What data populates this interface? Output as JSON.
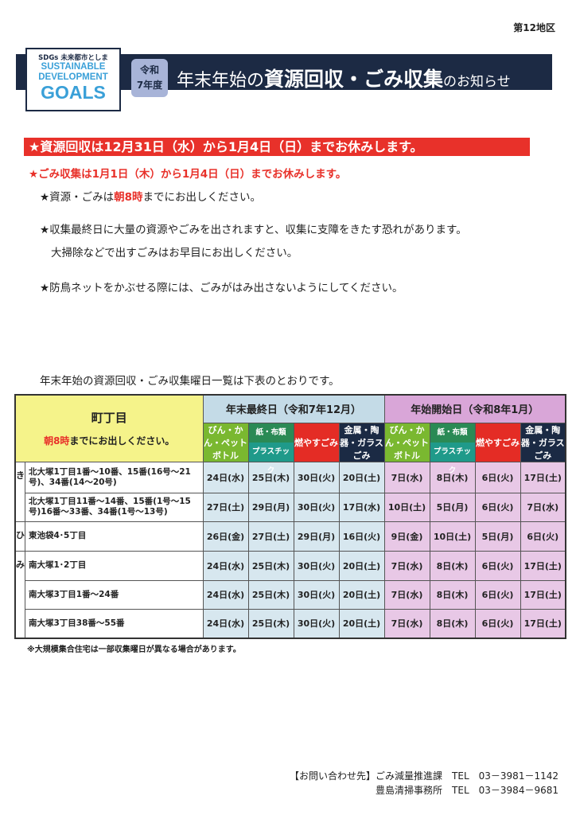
{
  "district": "第12地区",
  "logo": {
    "line1": "SDGs 未来都市としま",
    "line2": "SUSTAINABLE",
    "line3": "DEVELOPMENT",
    "line4": "GOALS"
  },
  "header": {
    "year_line1": "令和",
    "year_line2": "7年度",
    "title_a": "年末年始の",
    "title_b": "資源回収・ごみ収集",
    "title_c": "のお知らせ"
  },
  "banner": "★資源回収は12月31日（水）から1月4日（日）までお休みします。",
  "notice2": "★ごみ収集は1月1日（木）から1月4日（日）までお休みします。",
  "bullets": {
    "b1a": "★資源・ごみは",
    "b1b": "朝8時",
    "b1c": "までにお出しください。",
    "b2": "★収集最終日に大量の資源やごみを出されますと、収集に支障をきたす恐れがあります。",
    "b2b": "大掃除などで出すごみはお早目にお出しください。",
    "b3": "★防鳥ネットをかぶせる際には、ごみがはみ出さないようにしてください。"
  },
  "table_intro": "年末年始の資源回収・ごみ収集曜日一覧は下表のとおりです。",
  "table": {
    "area_header": "町丁目",
    "area_sub_a": "朝8時",
    "area_sub_b": "までにお出しください。",
    "end_header": "年末最終日（令和7年12月）",
    "start_header": "年始開始日（令和8年1月）",
    "categories": {
      "bottles": "びん・かん・ペットボトル",
      "paper": "紙・布類",
      "plastic": "プラスチック",
      "burnable": "燃やすごみ",
      "metal": "金属・陶器・ガラスごみ"
    },
    "rows": [
      {
        "kana": "き",
        "area": "北大塚1丁目1番～10番、15番(16号～21号)、34番(14～20号)",
        "dates": [
          "24日(水)",
          "25日(木)",
          "30日(火)",
          "20日(土)",
          "7日(水)",
          "8日(木)",
          "6日(火)",
          "17日(土)"
        ]
      },
      {
        "kana": "",
        "area": "北大塚1丁目11番～14番、15番(1号～15号)16番～33番、34番(1号～13号)",
        "dates": [
          "27日(土)",
          "29日(月)",
          "30日(火)",
          "17日(水)",
          "10日(土)",
          "5日(月)",
          "6日(火)",
          "7日(水)"
        ]
      },
      {
        "kana": "ひ",
        "area": "東池袋4･5丁目",
        "dates": [
          "26日(金)",
          "27日(土)",
          "29日(月)",
          "16日(火)",
          "9日(金)",
          "10日(土)",
          "5日(月)",
          "6日(火)"
        ]
      },
      {
        "kana": "み",
        "area": "南大塚1･2丁目",
        "dates": [
          "24日(水)",
          "25日(木)",
          "30日(火)",
          "20日(土)",
          "7日(水)",
          "8日(木)",
          "6日(火)",
          "17日(土)"
        ]
      },
      {
        "kana": "",
        "area": "南大塚3丁目1番～24番",
        "dates": [
          "24日(水)",
          "25日(木)",
          "30日(火)",
          "20日(土)",
          "7日(水)",
          "8日(木)",
          "6日(火)",
          "17日(土)"
        ]
      },
      {
        "kana": "",
        "area": "南大塚3丁目38番～55番",
        "dates": [
          "24日(水)",
          "25日(木)",
          "30日(火)",
          "20日(土)",
          "7日(水)",
          "8日(木)",
          "6日(火)",
          "17日(土)"
        ]
      }
    ]
  },
  "footnote": "※大規模集合住宅は一部収集曜日が異なる場合があります。",
  "contact": {
    "line1": "【お問い合わせ先】ごみ減量推進課　TEL　03－3981－1142",
    "line2": "豊島清掃事務所　TEL　03－3984－9681"
  },
  "colors": {
    "navy": "#1c2a44",
    "red": "#e8312a",
    "yellow": "#f5f38a",
    "blue": "#d7e7ef",
    "pink": "#e8c8e6"
  }
}
